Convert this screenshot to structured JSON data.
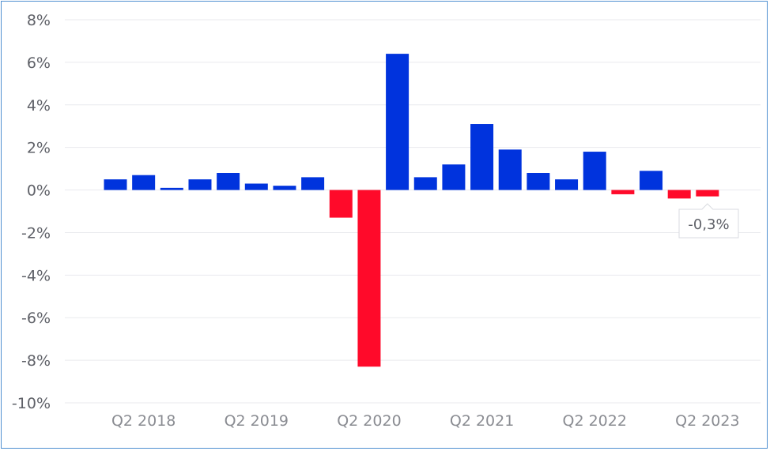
{
  "chart_data": {
    "type": "bar",
    "categories": [
      "Q1 2018",
      "Q2 2018",
      "Q3 2018",
      "Q4 2018",
      "Q1 2019",
      "Q2 2019",
      "Q3 2019",
      "Q4 2019",
      "Q1 2020",
      "Q2 2020",
      "Q3 2020",
      "Q4 2020",
      "Q1 2021",
      "Q2 2021",
      "Q3 2021",
      "Q4 2021",
      "Q1 2022",
      "Q2 2022",
      "Q3 2022",
      "Q4 2022",
      "Q1 2023",
      "Q2 2023"
    ],
    "values": [
      0.5,
      0.7,
      0.1,
      0.5,
      0.8,
      0.3,
      0.2,
      0.6,
      -1.3,
      -8.3,
      6.4,
      0.6,
      1.2,
      3.1,
      1.9,
      0.8,
      0.5,
      1.8,
      -0.2,
      0.9,
      -0.4,
      -0.3
    ],
    "ylim": [
      -10,
      8
    ],
    "yticks": [
      8,
      6,
      4,
      2,
      0,
      -2,
      -4,
      -6,
      -8,
      -10
    ],
    "yticklabels": [
      "8%",
      "6%",
      "4%",
      "2%",
      "0%",
      "-2%",
      "-4%",
      "-6%",
      "-8%",
      "-10%"
    ],
    "xtick_labels": [
      "Q2 2018",
      "Q2 2019",
      "Q2 2020",
      "Q2 2021",
      "Q2 2022",
      "Q2 2023"
    ],
    "xtick_categories": [
      "Q2 2018",
      "Q2 2019",
      "Q2 2020",
      "Q2 2021",
      "Q2 2022",
      "Q2 2023"
    ],
    "title": "",
    "xlabel": "",
    "ylabel": "",
    "grid": true,
    "colors": {
      "positive": "#0033dd",
      "negative": "#ff0a2a",
      "grid": "#e9eaee",
      "frame": "#4f8fd0"
    },
    "tooltip": {
      "label": "-0,3%",
      "category": "Q2 2023"
    }
  }
}
